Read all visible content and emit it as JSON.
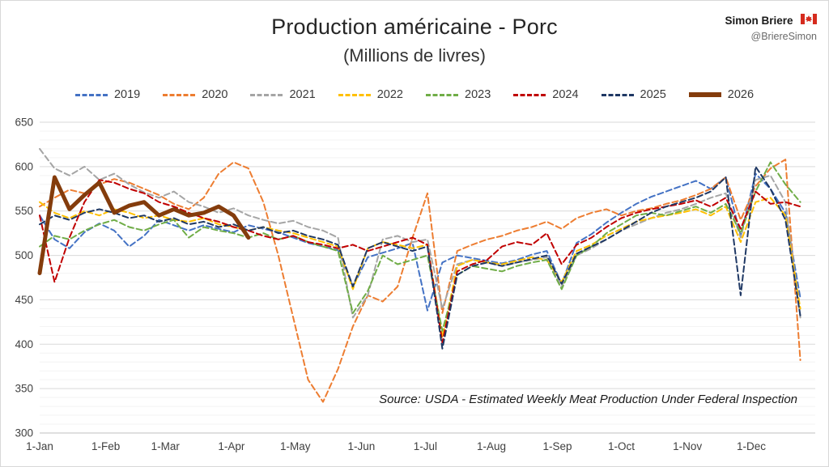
{
  "title": "Production américaine - Porc",
  "subtitle": "(Millions de livres)",
  "attribution": {
    "name": "Simon Briere",
    "handle": "@BriereSimon",
    "flag_icon": "canada-flag"
  },
  "source_label": "Source:",
  "source_text": "USDA - Estimated Weekly Meat Production Under Federal Inspection",
  "chart_data": {
    "type": "line",
    "title": "Production américaine - Porc",
    "subtitle": "(Millions de livres)",
    "x_unit": "week-of-year",
    "xlim": [
      1,
      53
    ],
    "ylim": [
      300,
      650
    ],
    "ytick_step": 50,
    "minor_ytick_step": 10,
    "grid": true,
    "legend_position": "top",
    "xticks": [
      {
        "label": "1-Jan",
        "week": 1
      },
      {
        "label": "1-Feb",
        "week": 5.43
      },
      {
        "label": "1-Mar",
        "week": 9.43
      },
      {
        "label": "1-Apr",
        "week": 13.86
      },
      {
        "label": "1-May",
        "week": 18.14
      },
      {
        "label": "1-Jun",
        "week": 22.57
      },
      {
        "label": "1-Jul",
        "week": 26.86
      },
      {
        "label": "1-Aug",
        "week": 31.29
      },
      {
        "label": "1-Sep",
        "week": 35.71
      },
      {
        "label": "1-Oct",
        "week": 40.0
      },
      {
        "label": "1-Nov",
        "week": 44.43
      },
      {
        "label": "1-Dec",
        "week": 48.71
      }
    ],
    "series": [
      {
        "name": "2019",
        "color": "#4472C4",
        "dash": true,
        "width": 2,
        "values": [
          545,
          518,
          508,
          526,
          536,
          528,
          510,
          522,
          540,
          534,
          528,
          534,
          530,
          526,
          534,
          530,
          526,
          520,
          514,
          510,
          506,
          465,
          498,
          503,
          508,
          514,
          438,
          492,
          500,
          497,
          494,
          491,
          495,
          501,
          505,
          468,
          514,
          524,
          537,
          548,
          558,
          566,
          572,
          578,
          584,
          575,
          588,
          522,
          592,
          575,
          548,
          452
        ]
      },
      {
        "name": "2020",
        "color": "#ED7D31",
        "dash": true,
        "width": 2,
        "values": [
          555,
          565,
          574,
          570,
          580,
          586,
          582,
          575,
          568,
          558,
          552,
          565,
          592,
          605,
          598,
          560,
          500,
          430,
          360,
          335,
          372,
          420,
          455,
          448,
          465,
          520,
          570,
          435,
          505,
          512,
          518,
          522,
          528,
          532,
          538,
          530,
          542,
          548,
          552,
          545,
          550,
          553,
          558,
          562,
          568,
          575,
          588,
          540,
          578,
          598,
          608,
          382
        ]
      },
      {
        "name": "2021",
        "color": "#A5A5A5",
        "dash": true,
        "width": 2,
        "values": [
          620,
          598,
          590,
          600,
          585,
          592,
          580,
          571,
          565,
          572,
          560,
          555,
          548,
          553,
          545,
          540,
          536,
          539,
          532,
          528,
          520,
          430,
          455,
          518,
          522,
          515,
          518,
          440,
          490,
          495,
          492,
          488,
          492,
          495,
          498,
          465,
          500,
          508,
          518,
          528,
          535,
          542,
          548,
          552,
          558,
          565,
          570,
          520,
          585,
          590,
          560,
          430
        ]
      },
      {
        "name": "2022",
        "color": "#FFC000",
        "dash": true,
        "width": 2,
        "values": [
          560,
          548,
          542,
          550,
          545,
          552,
          548,
          542,
          545,
          540,
          538,
          542,
          535,
          532,
          528,
          532,
          528,
          525,
          520,
          515,
          510,
          462,
          508,
          515,
          512,
          508,
          512,
          408,
          488,
          495,
          492,
          490,
          494,
          498,
          495,
          470,
          505,
          512,
          522,
          530,
          538,
          542,
          545,
          548,
          552,
          545,
          555,
          515,
          560,
          565,
          545,
          440
        ]
      },
      {
        "name": "2023",
        "color": "#70AD47",
        "dash": true,
        "width": 2,
        "values": [
          510,
          522,
          518,
          528,
          535,
          540,
          532,
          528,
          535,
          540,
          520,
          532,
          528,
          525,
          520,
          525,
          518,
          522,
          515,
          510,
          505,
          435,
          460,
          500,
          490,
          495,
          500,
          415,
          478,
          488,
          485,
          482,
          488,
          492,
          495,
          462,
          500,
          510,
          525,
          535,
          545,
          548,
          545,
          550,
          555,
          548,
          558,
          525,
          572,
          605,
          580,
          560
        ]
      },
      {
        "name": "2024",
        "color": "#C00000",
        "dash": true,
        "width": 2,
        "values": [
          545,
          470,
          520,
          560,
          585,
          582,
          575,
          570,
          560,
          555,
          548,
          542,
          538,
          532,
          528,
          522,
          518,
          522,
          515,
          512,
          508,
          512,
          505,
          510,
          515,
          520,
          512,
          402,
          482,
          490,
          495,
          510,
          515,
          512,
          525,
          490,
          512,
          520,
          532,
          542,
          548,
          552,
          555,
          558,
          562,
          555,
          565,
          530,
          572,
          558,
          560,
          555
        ]
      },
      {
        "name": "2025",
        "color": "#1F3864",
        "dash": true,
        "width": 2,
        "values": [
          535,
          545,
          540,
          548,
          552,
          548,
          542,
          545,
          538,
          542,
          535,
          538,
          532,
          535,
          528,
          532,
          525,
          528,
          522,
          518,
          512,
          465,
          508,
          515,
          510,
          505,
          510,
          395,
          478,
          488,
          492,
          488,
          492,
          496,
          500,
          468,
          502,
          510,
          518,
          528,
          538,
          548,
          555,
          560,
          565,
          572,
          588,
          455,
          600,
          575,
          540,
          432
        ]
      },
      {
        "name": "2026",
        "color": "#843C0C",
        "dash": false,
        "width": 5,
        "values": [
          480,
          588,
          552,
          568,
          582,
          548,
          556,
          560,
          545,
          552,
          545,
          548,
          555,
          545,
          520
        ]
      }
    ]
  }
}
